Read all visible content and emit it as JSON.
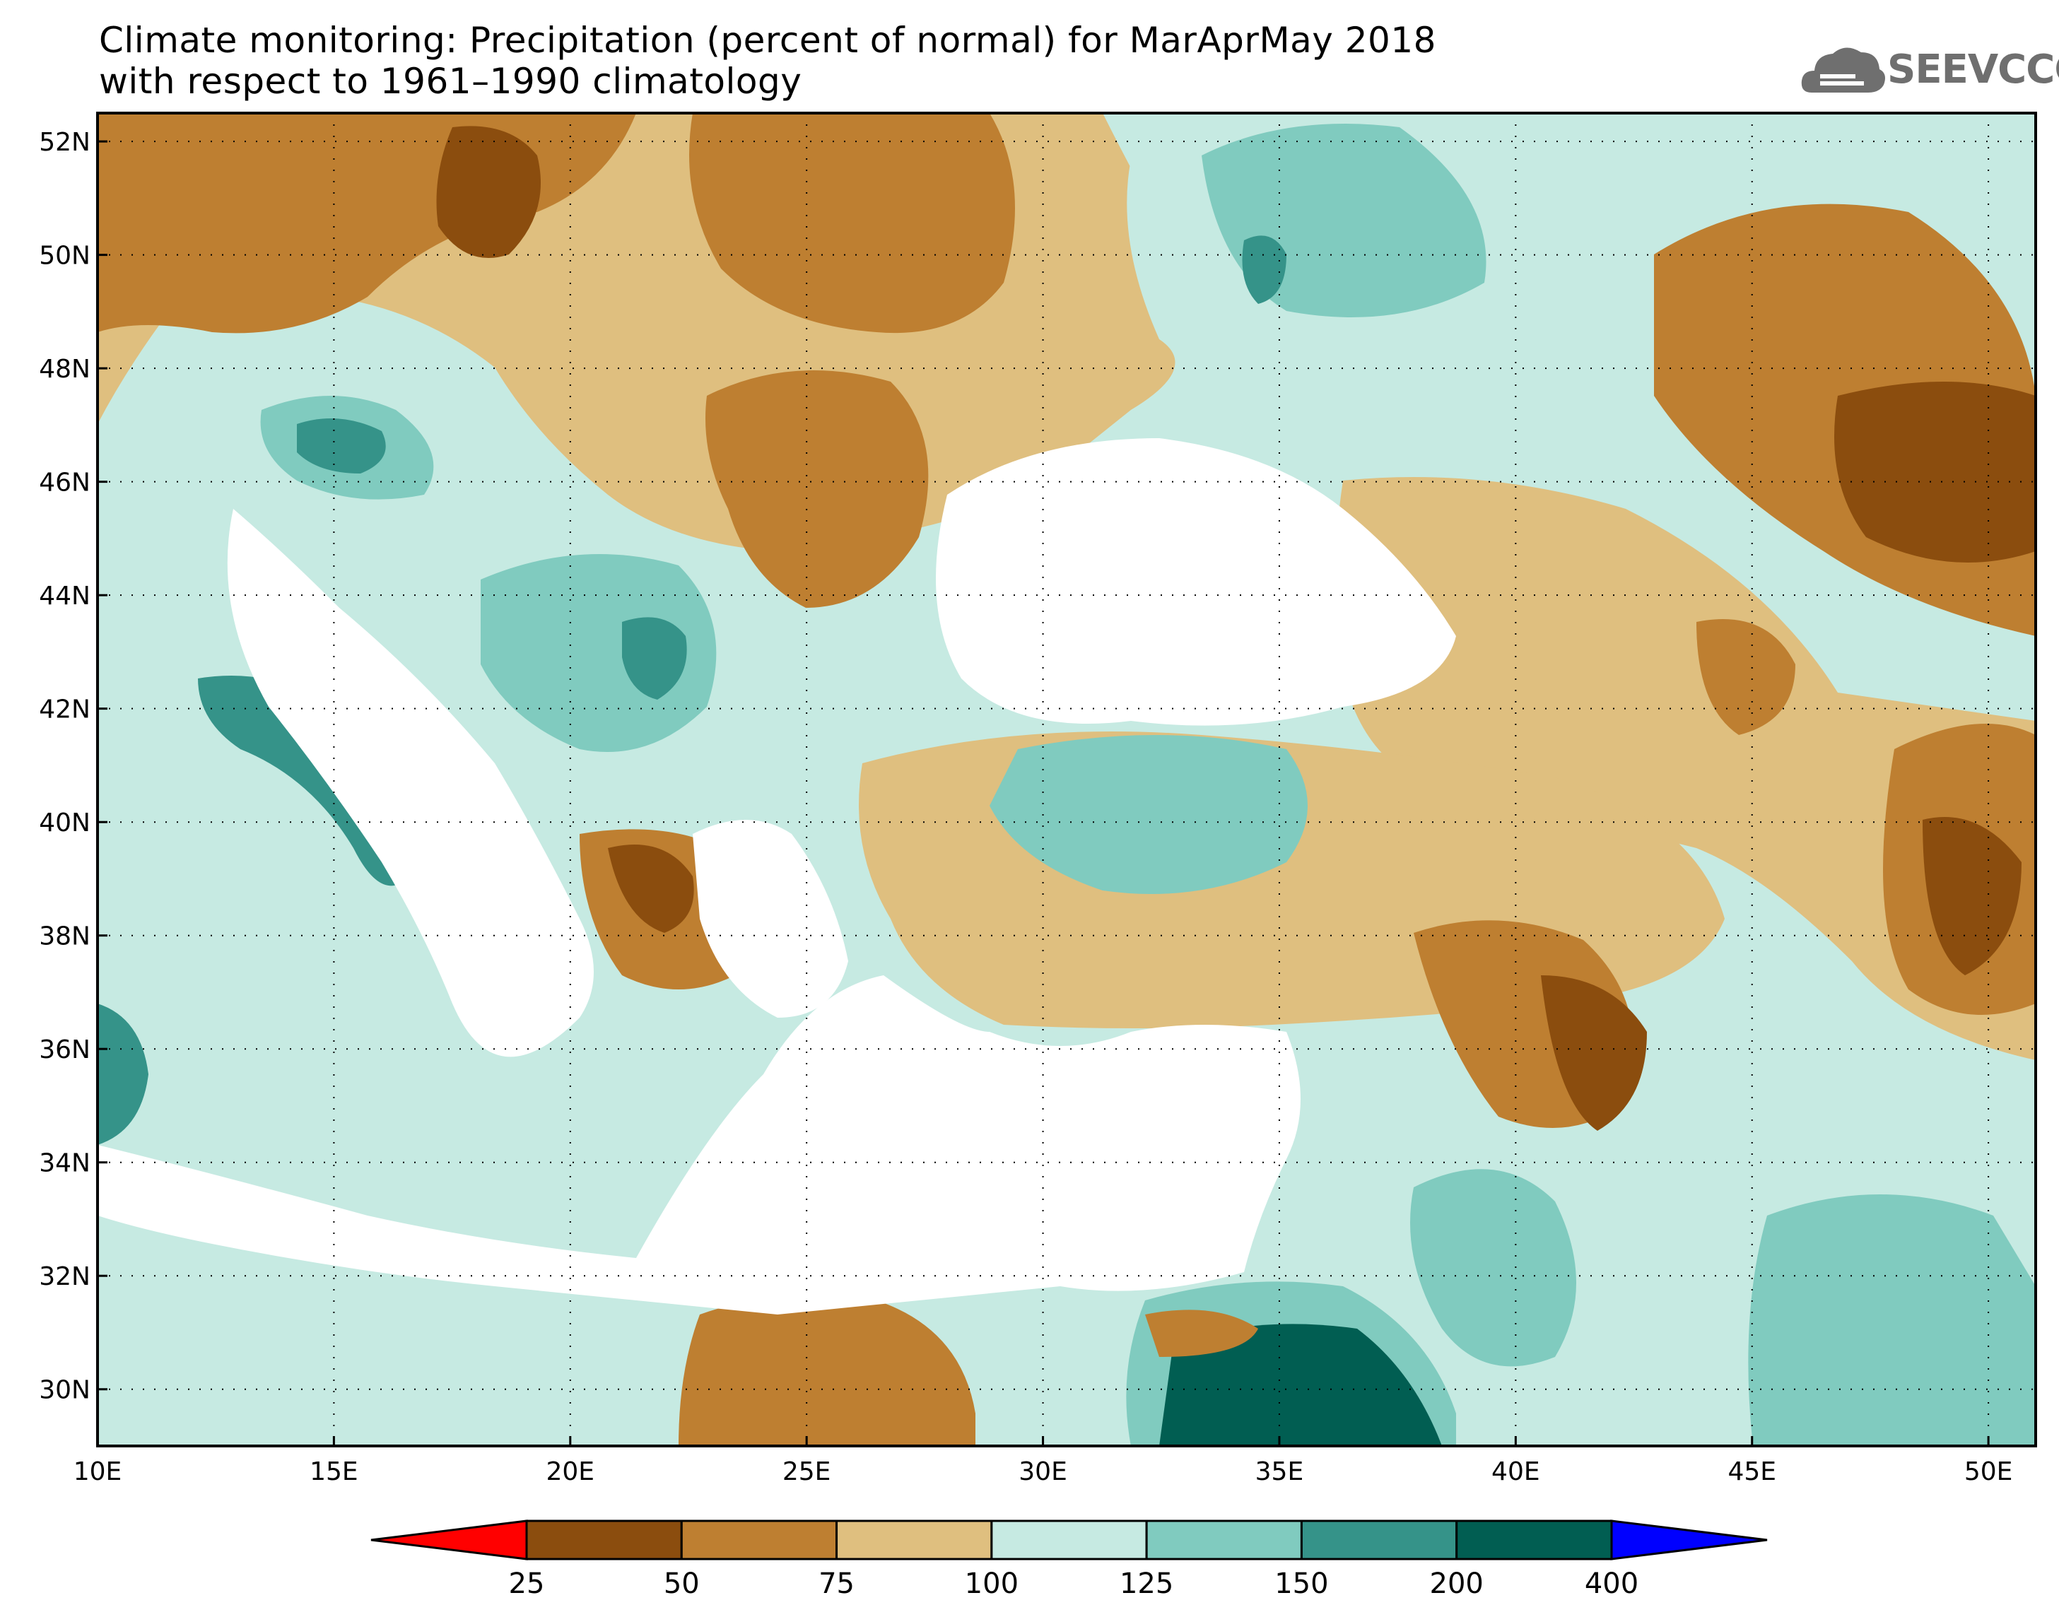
{
  "title": {
    "line1": "Climate monitoring: Precipitation (percent of normal) for MarAprMay 2018",
    "line2": "with respect to 1961–1990 climatology"
  },
  "logo": {
    "text": "SEEVCCC",
    "icon": "cloud-icon"
  },
  "map": {
    "lon_range": [
      10,
      51
    ],
    "lat_range": [
      29,
      52.5
    ],
    "lat_ticks": [
      {
        "value": 30,
        "label": "30N"
      },
      {
        "value": 32,
        "label": "32N"
      },
      {
        "value": 34,
        "label": "34N"
      },
      {
        "value": 36,
        "label": "36N"
      },
      {
        "value": 38,
        "label": "38N"
      },
      {
        "value": 40,
        "label": "40N"
      },
      {
        "value": 42,
        "label": "42N"
      },
      {
        "value": 44,
        "label": "44N"
      },
      {
        "value": 46,
        "label": "46N"
      },
      {
        "value": 48,
        "label": "48N"
      },
      {
        "value": 50,
        "label": "50N"
      },
      {
        "value": 52,
        "label": "52N"
      }
    ],
    "lon_ticks": [
      {
        "value": 10,
        "label": "10E"
      },
      {
        "value": 15,
        "label": "15E"
      },
      {
        "value": 20,
        "label": "20E"
      },
      {
        "value": 25,
        "label": "25E"
      },
      {
        "value": 30,
        "label": "30E"
      },
      {
        "value": 35,
        "label": "35E"
      },
      {
        "value": 40,
        "label": "40E"
      },
      {
        "value": 45,
        "label": "45E"
      },
      {
        "value": 50,
        "label": "50E"
      }
    ],
    "grid": "dotted"
  },
  "legend": {
    "colors": [
      "#ff0000",
      "#8b4d0e",
      "#be7f31",
      "#dfbf7f",
      "#c6eae2",
      "#80cbbf",
      "#359389",
      "#015e52",
      "#0000ff"
    ],
    "labels": [
      "25",
      "50",
      "75",
      "100",
      "125",
      "150",
      "200",
      "400"
    ]
  }
}
